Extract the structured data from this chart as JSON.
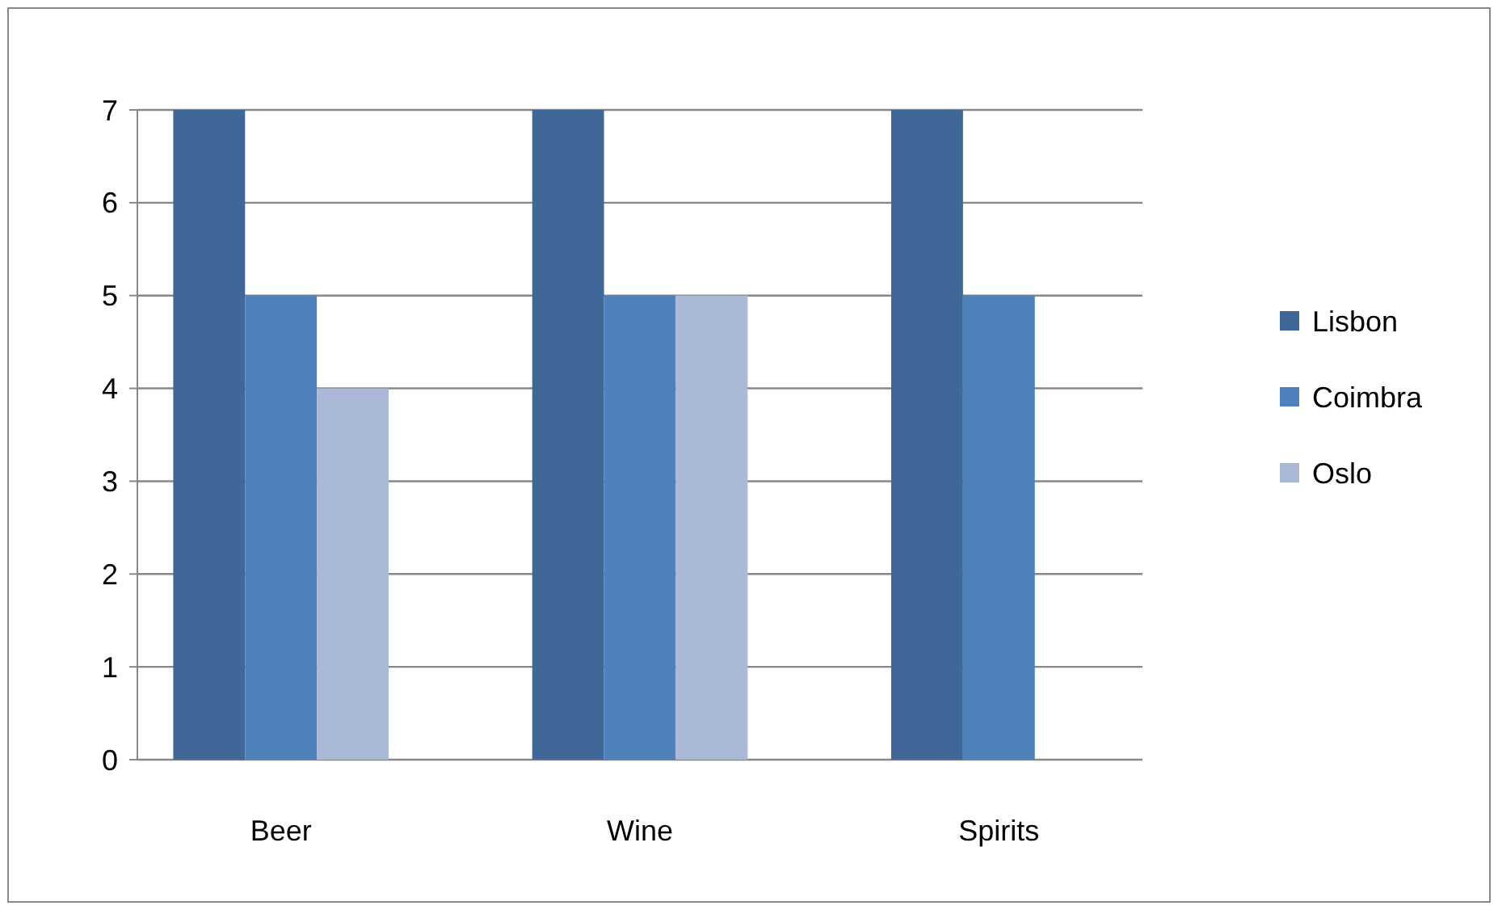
{
  "chart_data": {
    "type": "bar",
    "categories": [
      "Beer",
      "Wine",
      "Spirits"
    ],
    "series": [
      {
        "name": "Lisbon",
        "color": "#3f6797",
        "values": [
          7,
          7,
          7
        ]
      },
      {
        "name": "Coimbra",
        "color": "#4f81bd",
        "values": [
          5,
          5,
          5
        ]
      },
      {
        "name": "Oslo",
        "color": "#aab9d8",
        "values": [
          4,
          5,
          null
        ]
      }
    ],
    "ylim": [
      0,
      7
    ],
    "yticks": [
      0,
      1,
      2,
      3,
      4,
      5,
      6,
      7
    ],
    "grid": "y",
    "legend": "right"
  }
}
